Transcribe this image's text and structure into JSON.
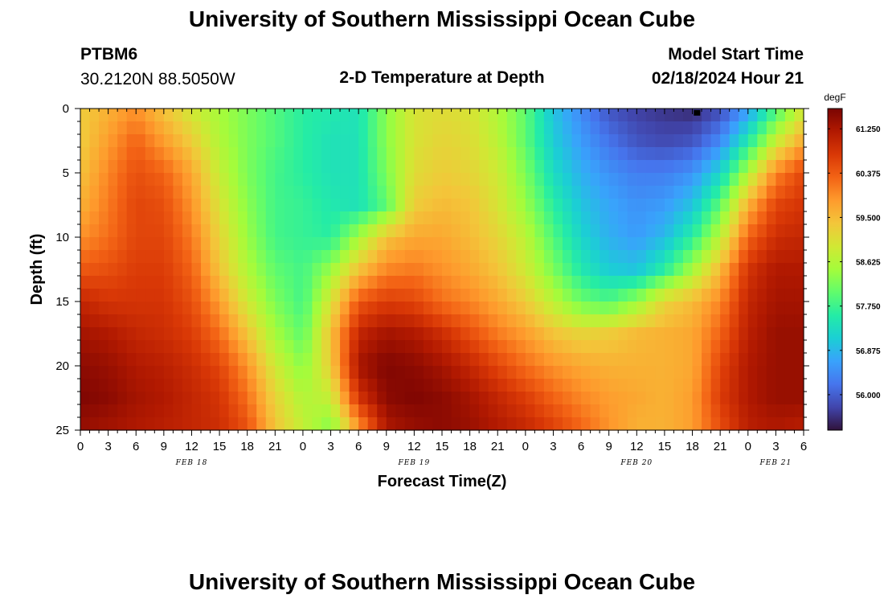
{
  "header": {
    "title": "University of Southern Mississippi Ocean Cube",
    "station": "PTBM6",
    "coords": "30.2120N  88.5050W",
    "chart_title": "2-D Temperature at Depth",
    "model_start_label": "Model Start Time",
    "model_start_value": "02/18/2024 Hour 21"
  },
  "footer": {
    "title": "University of Southern Mississippi Ocean Cube"
  },
  "colors": {
    "scale": [
      "#30123b",
      "#4145ab",
      "#4675ed",
      "#39a2fc",
      "#1bcfd4",
      "#24eca6",
      "#61fc6c",
      "#a4fc3b",
      "#d1e834",
      "#f3c63a",
      "#fe9b2d",
      "#f36315",
      "#d93806",
      "#b11901",
      "#7a0402"
    ]
  },
  "chart_data": {
    "type": "heatmap",
    "title": "2-D Temperature at Depth",
    "xlabel": "Forecast Time(Z)",
    "ylabel": "Depth (ft)",
    "colorbar_unit": "degF",
    "x_range_hours": [
      0,
      78
    ],
    "y_range_ft": [
      0,
      25
    ],
    "x_tick_labels": [
      "0",
      "3",
      "6",
      "9",
      "12",
      "15",
      "18",
      "21",
      "0",
      "3",
      "6",
      "9",
      "12",
      "15",
      "18",
      "21",
      "0",
      "3",
      "6",
      "9",
      "12",
      "15",
      "18",
      "21",
      "0",
      "3",
      "6"
    ],
    "y_tick_labels": [
      "0",
      "5",
      "10",
      "15",
      "20",
      "25"
    ],
    "y_ticks": [
      0,
      5,
      10,
      15,
      20,
      25
    ],
    "day_labels": [
      {
        "label": "FEB 18",
        "hour": 12
      },
      {
        "label": "FEB 19",
        "hour": 36
      },
      {
        "label": "FEB 20",
        "hour": 60
      },
      {
        "label": "FEB 21",
        "hour": 75
      }
    ],
    "colorbar_labels": [
      "61.250",
      "60.375",
      "59.500",
      "58.625",
      "57.750",
      "56.875",
      "56.000"
    ],
    "colorbar_values": [
      61.25,
      60.375,
      59.5,
      58.625,
      57.75,
      56.875,
      56.0
    ],
    "colorbar_range": [
      55.3,
      61.65
    ],
    "marker": {
      "hour": 66.5,
      "depth": 0.3
    },
    "depth_levels_ft": [
      0,
      2.5,
      5,
      7.5,
      10,
      12.5,
      15,
      17.5,
      20,
      22.5,
      25
    ],
    "time_hours": [
      0,
      3,
      6,
      9,
      12,
      15,
      18,
      21,
      24,
      27,
      30,
      33,
      36,
      39,
      42,
      45,
      48,
      51,
      54,
      57,
      60,
      63,
      66,
      69,
      72,
      75,
      78
    ],
    "temperature_degF_by_depth": [
      [
        59.3,
        59.6,
        59.9,
        59.4,
        58.9,
        58.5,
        58.2,
        57.9,
        57.6,
        57.5,
        57.4,
        58.3,
        59.0,
        59.1,
        59.0,
        58.6,
        58.0,
        57.0,
        56.4,
        55.9,
        55.7,
        55.6,
        55.5,
        55.8,
        56.6,
        57.8,
        58.9
      ],
      [
        59.3,
        59.8,
        60.3,
        59.8,
        59.3,
        58.6,
        58.2,
        57.9,
        57.6,
        57.4,
        57.4,
        58.3,
        59.0,
        59.2,
        59.1,
        58.7,
        58.0,
        57.1,
        56.6,
        56.2,
        55.9,
        55.8,
        55.9,
        56.4,
        57.5,
        58.8,
        59.7
      ],
      [
        59.4,
        60.0,
        60.5,
        60.3,
        59.7,
        58.8,
        58.2,
        57.8,
        57.6,
        57.4,
        57.4,
        58.2,
        59.1,
        59.3,
        59.2,
        58.9,
        58.2,
        57.3,
        56.8,
        56.5,
        56.3,
        56.3,
        56.5,
        57.2,
        58.6,
        60.0,
        60.6
      ],
      [
        59.6,
        60.1,
        60.6,
        60.5,
        59.9,
        59.0,
        58.3,
        57.8,
        57.7,
        57.5,
        57.4,
        58.0,
        59.3,
        59.5,
        59.4,
        59.0,
        58.4,
        57.6,
        57.0,
        56.7,
        56.5,
        56.6,
        57.0,
        58.0,
        59.6,
        60.6,
        60.8
      ],
      [
        59.9,
        60.2,
        60.6,
        60.6,
        60.1,
        59.2,
        58.4,
        57.8,
        57.7,
        57.6,
        58.5,
        59.4,
        59.7,
        59.7,
        59.5,
        59.2,
        58.7,
        57.9,
        57.2,
        56.8,
        56.6,
        56.9,
        57.6,
        58.7,
        60.3,
        60.9,
        61.0
      ],
      [
        60.4,
        60.5,
        60.7,
        60.7,
        60.3,
        59.4,
        58.6,
        58.0,
        57.8,
        58.4,
        59.4,
        60.0,
        60.1,
        59.9,
        59.7,
        59.4,
        58.9,
        58.2,
        57.5,
        57.1,
        57.0,
        57.6,
        58.5,
        59.5,
        60.8,
        61.2,
        61.2
      ],
      [
        61.0,
        60.8,
        60.8,
        60.8,
        60.5,
        59.8,
        58.9,
        58.2,
        57.8,
        59.0,
        60.4,
        60.7,
        60.6,
        60.2,
        60.0,
        59.7,
        59.3,
        58.7,
        58.1,
        57.9,
        58.4,
        59.2,
        59.5,
        60.0,
        61.0,
        61.3,
        61.3
      ],
      [
        61.3,
        61.2,
        61.0,
        60.9,
        60.7,
        60.2,
        59.4,
        58.5,
        58.0,
        59.4,
        61.0,
        61.3,
        61.2,
        60.9,
        60.5,
        60.1,
        59.8,
        59.4,
        59.2,
        59.3,
        59.5,
        59.6,
        59.7,
        60.3,
        61.1,
        61.4,
        61.4
      ],
      [
        61.5,
        61.4,
        61.2,
        61.1,
        60.9,
        60.6,
        59.9,
        58.9,
        58.3,
        59.3,
        61.3,
        61.6,
        61.5,
        61.3,
        61.0,
        60.6,
        60.2,
        59.9,
        59.7,
        59.6,
        59.6,
        59.6,
        59.7,
        60.6,
        61.2,
        61.4,
        61.4
      ],
      [
        61.6,
        61.5,
        61.3,
        61.2,
        61.0,
        60.8,
        60.2,
        59.2,
        58.6,
        58.8,
        60.8,
        61.5,
        61.6,
        61.5,
        61.3,
        61.0,
        60.7,
        60.3,
        60.0,
        59.8,
        59.7,
        59.6,
        59.8,
        60.7,
        61.2,
        61.4,
        61.4
      ],
      [
        61.4,
        61.3,
        61.2,
        61.1,
        61.0,
        60.9,
        60.5,
        59.4,
        58.8,
        58.2,
        59.8,
        61.2,
        61.4,
        61.5,
        61.4,
        61.2,
        61.0,
        60.7,
        60.3,
        59.9,
        59.6,
        59.6,
        59.8,
        60.5,
        61.1,
        61.2,
        61.1
      ]
    ]
  }
}
